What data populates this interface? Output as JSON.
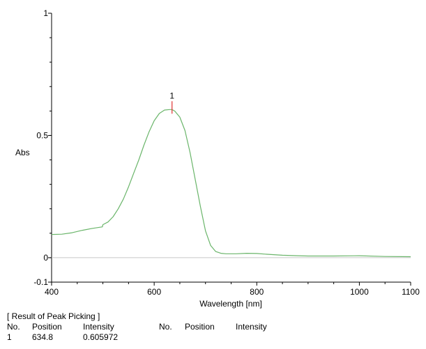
{
  "chart_data": {
    "type": "line",
    "xlabel": "Wavelength [nm]",
    "ylabel": "Abs",
    "xlim": [
      400,
      1100
    ],
    "ylim": [
      -0.1,
      1
    ],
    "x_ticks": [
      "400",
      "600",
      "800",
      "1000",
      "1100"
    ],
    "x_tick_values": [
      400,
      600,
      800,
      1000,
      1100
    ],
    "y_ticks": [
      "1",
      "0.5",
      "0",
      "-0.1"
    ],
    "y_tick_values": [
      1,
      0.5,
      0,
      -0.1
    ],
    "series": [
      {
        "color": "#6ab56a",
        "x": [
          400,
          420,
          440,
          460,
          480,
          499,
          500,
          510,
          520,
          530,
          540,
          550,
          560,
          570,
          580,
          590,
          600,
          610,
          620,
          630,
          634.8,
          640,
          650,
          660,
          670,
          680,
          690,
          700,
          710,
          720,
          730,
          740,
          760,
          780,
          800,
          820,
          850,
          880,
          900,
          950,
          1000,
          1050,
          1100
        ],
        "y": [
          0.095,
          0.096,
          0.102,
          0.112,
          0.12,
          0.126,
          0.135,
          0.146,
          0.168,
          0.2,
          0.24,
          0.29,
          0.345,
          0.4,
          0.46,
          0.515,
          0.56,
          0.59,
          0.604,
          0.606,
          0.606,
          0.6,
          0.575,
          0.52,
          0.43,
          0.32,
          0.21,
          0.11,
          0.05,
          0.025,
          0.018,
          0.016,
          0.016,
          0.018,
          0.017,
          0.014,
          0.01,
          0.008,
          0.007,
          0.007,
          0.008,
          0.005,
          0.004
        ]
      }
    ],
    "peak": {
      "label": "1",
      "x": 634.8,
      "y": 0.605972,
      "marker_color": "#e03030"
    }
  },
  "results": {
    "title": "[ Result of Peak Picking ]",
    "headers": [
      "No.",
      "Position",
      "Intensity",
      "No.",
      "Position",
      "Intensity"
    ],
    "rows": [
      {
        "no": "1",
        "position": "634.8",
        "intensity": "0.605972"
      }
    ]
  }
}
